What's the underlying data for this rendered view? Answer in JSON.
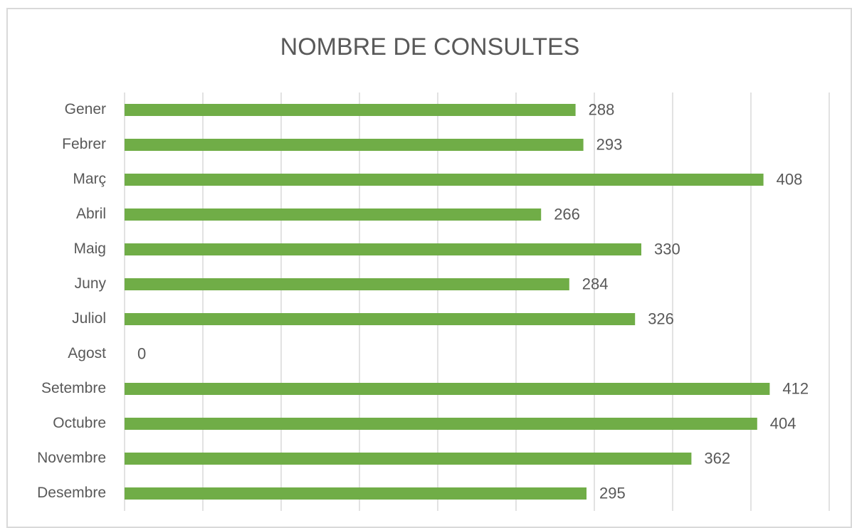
{
  "chart_data": {
    "type": "hbar",
    "title": "NOMBRE DE CONSULTES",
    "categories": [
      "Gener",
      "Febrer",
      "Març",
      "Abril",
      "Maig",
      "Juny",
      "Juliol",
      "Agost",
      "Setembre",
      "Octubre",
      "Novembre",
      "Desembre"
    ],
    "values": [
      288,
      293,
      408,
      266,
      330,
      284,
      326,
      0,
      412,
      404,
      362,
      295
    ],
    "color": "#70ad47",
    "xlim": [
      0,
      450
    ],
    "xticks": [
      0,
      50,
      100,
      150,
      200,
      250,
      300,
      350,
      400,
      450
    ],
    "grid": true
  }
}
